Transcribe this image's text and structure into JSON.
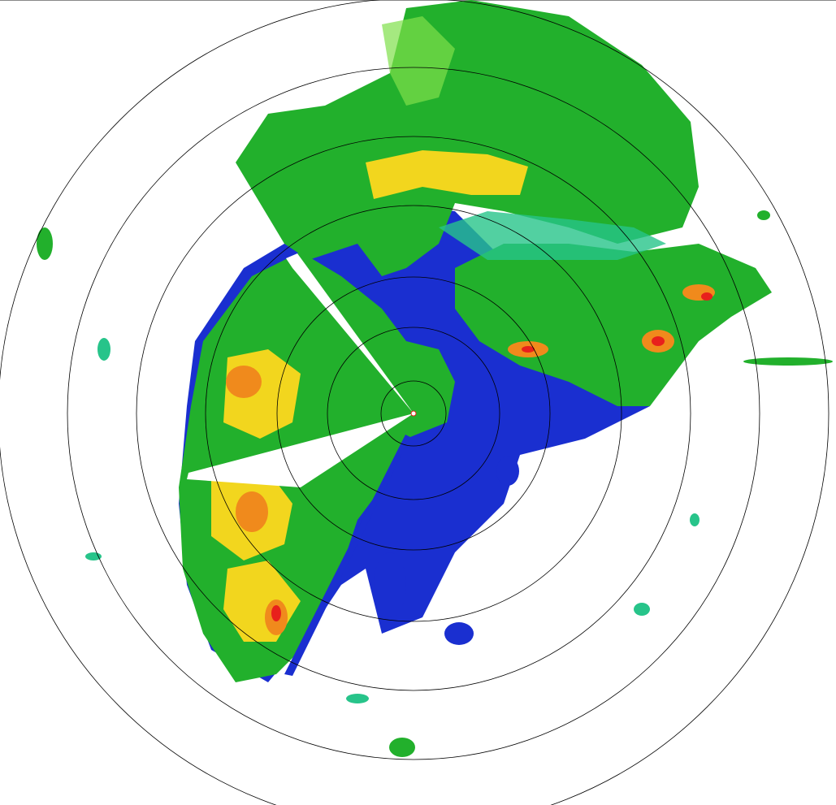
{
  "radar": {
    "ring_count": 7,
    "colors": {
      "background": "#ffffff",
      "ring": "#000000",
      "weak": "#1a2fd0",
      "light": "#27c48a",
      "moderate": "#22b02c",
      "bright": "#7fe04a",
      "heavy": "#f2d61e",
      "intense": "#f08a1c",
      "extreme": "#e8201c"
    }
  }
}
